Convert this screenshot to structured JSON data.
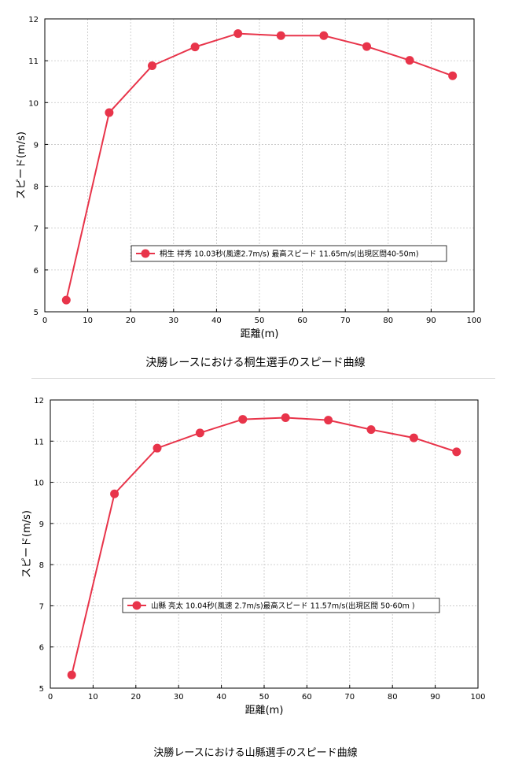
{
  "chart_data": [
    {
      "type": "line",
      "xlabel": "距離(m)",
      "ylabel": "スピード(m/s)",
      "xlim": [
        0,
        100
      ],
      "ylim": [
        5,
        12
      ],
      "xticks": [
        0,
        10,
        20,
        30,
        40,
        50,
        60,
        70,
        80,
        90,
        100
      ],
      "yticks": [
        5,
        6,
        7,
        8,
        9,
        10,
        11,
        12
      ],
      "grid": true,
      "legend_position": "center-right",
      "series": [
        {
          "name": "桐生 祥秀 10.03秒(風速2.7m/s) 最高スピード 11.65m/s(出現区間40-50m)",
          "color": "#e8344a",
          "x": [
            5,
            15,
            25,
            35,
            45,
            55,
            65,
            75,
            85,
            95
          ],
          "y": [
            5.28,
            9.76,
            10.88,
            11.33,
            11.65,
            11.6,
            11.6,
            11.34,
            11.01,
            10.64
          ]
        }
      ],
      "caption": "決勝レースにおける桐生選手のスピード曲線"
    },
    {
      "type": "line",
      "xlabel": "距離(m)",
      "ylabel": "スピード(m/s)",
      "xlim": [
        0,
        100
      ],
      "ylim": [
        5,
        12
      ],
      "xticks": [
        0,
        10,
        20,
        30,
        40,
        50,
        60,
        70,
        80,
        90,
        100
      ],
      "yticks": [
        5,
        6,
        7,
        8,
        9,
        10,
        11,
        12
      ],
      "grid": true,
      "legend_position": "center-right",
      "series": [
        {
          "name": "山縣 亮太 10.04秒(風速 2.7m/s)最高スピード 11.57m/s(出現区間  50-60m )",
          "color": "#e8344a",
          "x": [
            5,
            15,
            25,
            35,
            45,
            55,
            65,
            75,
            85,
            95
          ],
          "y": [
            5.32,
            9.72,
            10.83,
            11.2,
            11.53,
            11.57,
            11.51,
            11.28,
            11.08,
            10.74
          ]
        }
      ],
      "caption": "決勝レースにおける山縣選手のスピード曲線"
    }
  ]
}
